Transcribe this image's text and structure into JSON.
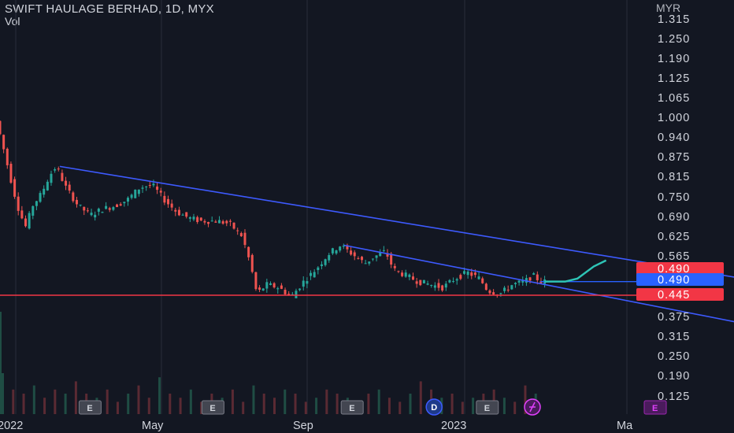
{
  "header": {
    "title": "SWIFT HAULAGE BERHAD, 1D, MYX",
    "volume_label": "Vol",
    "currency": "MYR"
  },
  "chart_data": {
    "type": "candlestick",
    "symbol": "SWIFT HAULAGE BERHAD",
    "interval": "1D",
    "exchange": "MYX",
    "currency": "MYR",
    "y_ticks": [
      "1.315",
      "1.250",
      "1.190",
      "1.125",
      "1.065",
      "1.000",
      "0.940",
      "0.875",
      "0.815",
      "0.750",
      "0.690",
      "0.625",
      "0.565",
      "0.490",
      "0.490",
      "0.445",
      "0.375",
      "0.315",
      "0.250",
      "0.190",
      "0.125"
    ],
    "x_ticks": [
      "2022",
      "May",
      "Sep",
      "2023",
      "Ma"
    ],
    "ylim": [
      0.08,
      1.33
    ],
    "price_path": [
      [
        0.0,
        1.02
      ],
      [
        0.06,
        0.96
      ],
      [
        0.13,
        0.88
      ],
      [
        0.2,
        0.8
      ],
      [
        0.28,
        0.72
      ],
      [
        0.36,
        0.67
      ],
      [
        0.44,
        0.74
      ],
      [
        0.55,
        0.78
      ],
      [
        0.65,
        0.84
      ],
      [
        0.73,
        0.87
      ],
      [
        0.85,
        0.8
      ],
      [
        1.0,
        0.74
      ],
      [
        1.15,
        0.71
      ],
      [
        1.3,
        0.73
      ],
      [
        1.45,
        0.74
      ],
      [
        1.6,
        0.76
      ],
      [
        1.75,
        0.8
      ],
      [
        1.9,
        0.81
      ],
      [
        2.05,
        0.76
      ],
      [
        2.2,
        0.72
      ],
      [
        2.35,
        0.7
      ],
      [
        2.5,
        0.69
      ],
      [
        2.7,
        0.69
      ],
      [
        2.85,
        0.68
      ],
      [
        3.0,
        0.64
      ],
      [
        3.1,
        0.55
      ],
      [
        3.18,
        0.45
      ],
      [
        3.3,
        0.48
      ],
      [
        3.45,
        0.47
      ],
      [
        3.6,
        0.44
      ],
      [
        3.75,
        0.49
      ],
      [
        3.9,
        0.53
      ],
      [
        4.05,
        0.58
      ],
      [
        4.2,
        0.61
      ],
      [
        4.35,
        0.58
      ],
      [
        4.5,
        0.55
      ],
      [
        4.6,
        0.57
      ],
      [
        4.75,
        0.59
      ],
      [
        4.85,
        0.53
      ],
      [
        5.0,
        0.51
      ],
      [
        5.15,
        0.49
      ],
      [
        5.3,
        0.48
      ],
      [
        5.45,
        0.47
      ],
      [
        5.6,
        0.5
      ],
      [
        5.75,
        0.52
      ],
      [
        5.9,
        0.5
      ],
      [
        6.0,
        0.46
      ],
      [
        6.15,
        0.45
      ],
      [
        6.3,
        0.48
      ],
      [
        6.45,
        0.49
      ],
      [
        6.55,
        0.51
      ],
      [
        6.65,
        0.49
      ]
    ],
    "projection_path": [
      [
        6.65,
        0.49
      ],
      [
        6.9,
        0.49
      ],
      [
        7.05,
        0.5
      ],
      [
        7.25,
        0.54
      ],
      [
        7.4,
        0.56
      ]
    ],
    "volume": [
      0.1,
      0.06,
      0.05,
      0.07,
      0.04,
      0.06,
      0.05,
      0.08,
      0.05,
      0.04,
      0.06,
      0.03,
      0.05,
      0.07,
      0.04,
      0.09,
      0.05,
      0.04,
      0.06,
      0.03,
      0.05,
      0.04,
      0.06,
      0.03,
      0.07,
      0.05,
      0.04,
      0.06,
      0.05,
      0.03,
      0.04,
      0.06,
      0.05,
      0.04,
      0.03,
      0.05,
      0.06,
      0.04,
      0.03,
      0.05,
      0.08,
      0.06,
      0.04,
      0.05,
      0.03,
      0.04,
      0.05,
      0.06,
      0.04,
      0.03,
      0.07,
      0.05
    ],
    "trendlines": [
      {
        "from": [
          0.73,
          0.87
        ],
        "to": [
          9.3,
          0.49
        ]
      },
      {
        "from": [
          4.2,
          0.61
        ],
        "to": [
          9.3,
          0.34
        ]
      }
    ],
    "horizontal_levels": [
      {
        "price": 0.445,
        "color": "#f23645",
        "label": "0.445"
      },
      {
        "price": 0.49,
        "color": "#2962ff",
        "label": "0.490"
      }
    ],
    "price_tags": [
      {
        "label": "0.490",
        "color": "#f23645"
      },
      {
        "label": "0.490",
        "color": "#2962ff"
      },
      {
        "label": "0.445",
        "color": "#f23645"
      }
    ],
    "events": [
      {
        "x": 1.1,
        "kind": "E"
      },
      {
        "x": 2.6,
        "kind": "E"
      },
      {
        "x": 4.3,
        "kind": "E"
      },
      {
        "x": 5.3,
        "kind": "D"
      },
      {
        "x": 5.95,
        "kind": "E"
      },
      {
        "x": 6.5,
        "kind": "split"
      },
      {
        "x": 8.0,
        "kind": "E"
      }
    ]
  }
}
